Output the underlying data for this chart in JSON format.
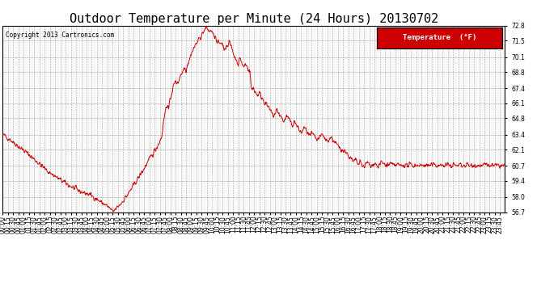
{
  "title": "Outdoor Temperature per Minute (24 Hours) 20130702",
  "copyright": "Copyright 2013 Cartronics.com",
  "legend_label": "Temperature  (°F)",
  "legend_bg": "#cc0000",
  "line_color": "#cc0000",
  "bg_color": "#ffffff",
  "plot_bg": "#ffffff",
  "grid_color": "#999999",
  "ylim": [
    56.7,
    72.8
  ],
  "yticks": [
    56.7,
    58.0,
    59.4,
    60.7,
    62.1,
    63.4,
    64.8,
    66.1,
    67.4,
    68.8,
    70.1,
    71.5,
    72.8
  ],
  "xtick_interval_minutes": 15,
  "total_minutes": 1440,
  "title_fontsize": 11,
  "tick_fontsize": 5.5,
  "copyright_fontsize": 5.5
}
